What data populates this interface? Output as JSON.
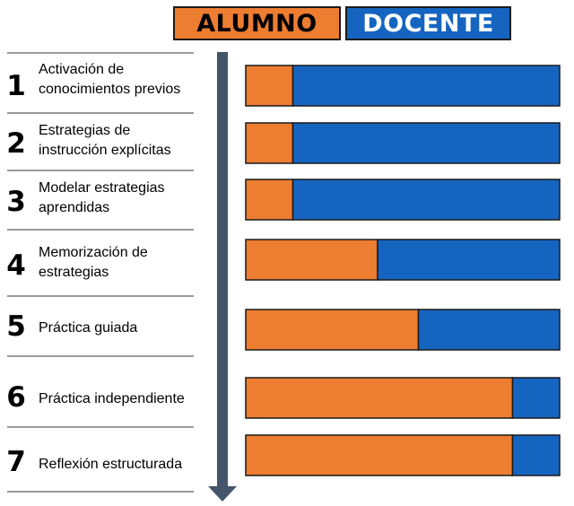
{
  "legend": {
    "alumno_label": "ALUMNO",
    "docente_label": "DOCENTE"
  },
  "colors": {
    "alumno": "#ED7D31",
    "docente": "#1565C0",
    "arrow": "#44546A",
    "divider": "#9a9a9a"
  },
  "steps": [
    {
      "number": "1",
      "label_line1": "Activación de",
      "label_line2": "conocimientos previos"
    },
    {
      "number": "2",
      "label_line1": "Estrategias de",
      "label_line2": "instrucción explícitas"
    },
    {
      "number": "3",
      "label_line1": "Modelar estrategias",
      "label_line2": "aprendidas"
    },
    {
      "number": "4",
      "label_line1": "Memorización de",
      "label_line2": "estrategias"
    },
    {
      "number": "5",
      "label_line1": "Práctica guiada",
      "label_line2": ""
    },
    {
      "number": "6",
      "label_line1": "Práctica independiente",
      "label_line2": ""
    },
    {
      "number": "7",
      "label_line1": "Reflexión estructurada",
      "label_line2": ""
    }
  ],
  "chart_data": {
    "type": "bar",
    "orientation": "horizontal",
    "stacked": true,
    "normalized_to": 100,
    "categories": [
      "Activación de conocimientos previos",
      "Estrategias de instrucción explícitas",
      "Modelar estrategias aprendidas",
      "Memorización de estrategias",
      "Práctica guiada",
      "Práctica independiente",
      "Reflexión estructurada"
    ],
    "series": [
      {
        "name": "ALUMNO",
        "values": [
          15,
          15,
          15,
          42,
          55,
          85,
          85
        ]
      },
      {
        "name": "DOCENTE",
        "values": [
          85,
          85,
          85,
          58,
          45,
          15,
          15
        ]
      }
    ],
    "xlim": [
      0,
      100
    ],
    "grid": false,
    "legend_position": "top"
  }
}
